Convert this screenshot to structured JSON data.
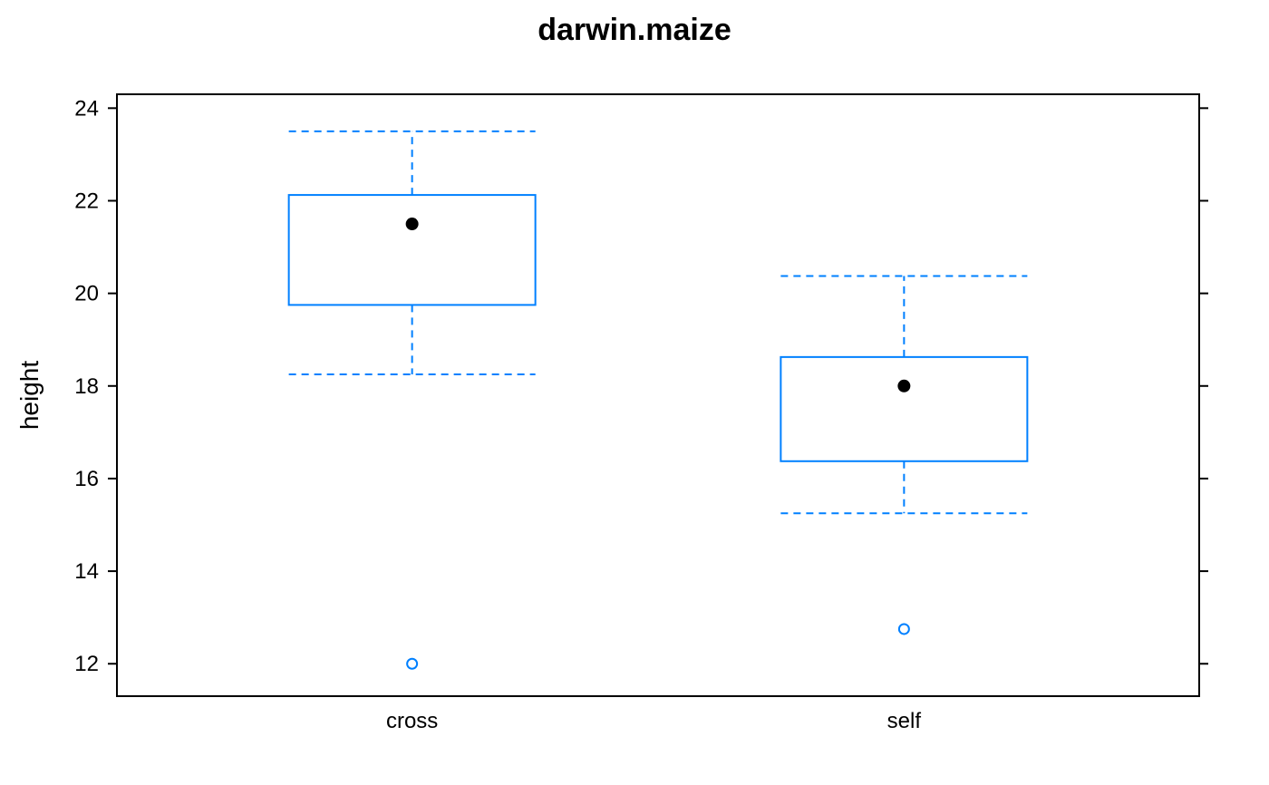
{
  "chart_data": {
    "type": "box",
    "title": "darwin.maize",
    "xlabel": "",
    "ylabel": "height",
    "ylim": [
      11.3,
      24.3
    ],
    "yticks": [
      12,
      14,
      16,
      18,
      20,
      22,
      24
    ],
    "box_color": "#0080ff",
    "median_color": "#000000",
    "groups": [
      {
        "label": "cross",
        "lower_whisker": 18.25,
        "q1": 19.75,
        "median": 21.5,
        "q3": 22.125,
        "upper_whisker": 23.5,
        "outliers": [
          12.0
        ]
      },
      {
        "label": "self",
        "lower_whisker": 15.25,
        "q1": 16.375,
        "median": 18.0,
        "q3": 18.625,
        "upper_whisker": 20.375,
        "outliers": [
          12.75
        ]
      }
    ]
  }
}
